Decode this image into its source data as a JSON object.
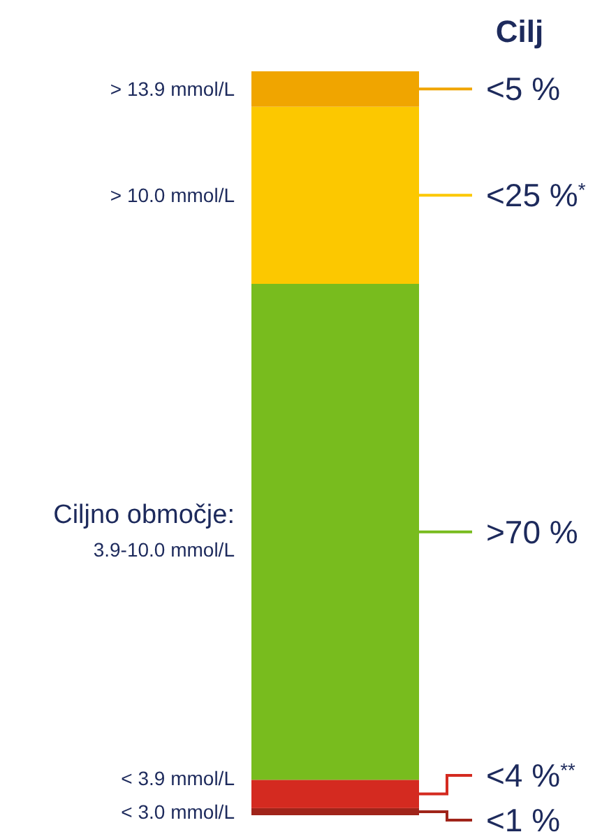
{
  "chart_data": {
    "type": "bar",
    "stacked": true,
    "title": "Cilj",
    "categories": [
      null
    ],
    "series": [
      {
        "name": "< 3.0 mmol/L",
        "color": "#a0241a",
        "values": [
          1
        ],
        "value_labels": [
          "<1 %"
        ]
      },
      {
        "name": "< 3.9 mmol/L",
        "color": "#d42a20",
        "values": [
          4
        ],
        "value_labels": [
          "<4 %$^{**}$"
        ]
      },
      {
        "name": "Ciljno območje:\n3.9-10.0 mmol/L",
        "color": "#78bc1e",
        "values": [
          70
        ],
        "value_labels": [
          ">70 %"
        ]
      },
      {
        "name": "> 10.0 mmol/L",
        "color": "#fcc800",
        "values": [
          25
        ],
        "value_labels": [
          "<25 %$^{*}$"
        ]
      },
      {
        "name": "> 13.9 mmol/L",
        "color": "#f0a500",
        "values": [
          5
        ],
        "value_labels": [
          "<5 %"
        ]
      }
    ]
  }
}
